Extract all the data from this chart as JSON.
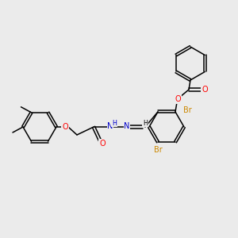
{
  "bg_color": "#ebebeb",
  "bond_color": "#000000",
  "atom_colors": {
    "O": "#ff0000",
    "N": "#0000cc",
    "Br": "#cc8800",
    "C": "#000000",
    "H": "#555555"
  },
  "figsize": [
    3.0,
    3.0
  ],
  "dpi": 100,
  "lw": 1.1,
  "fs": 7.0,
  "fs_small": 5.8
}
